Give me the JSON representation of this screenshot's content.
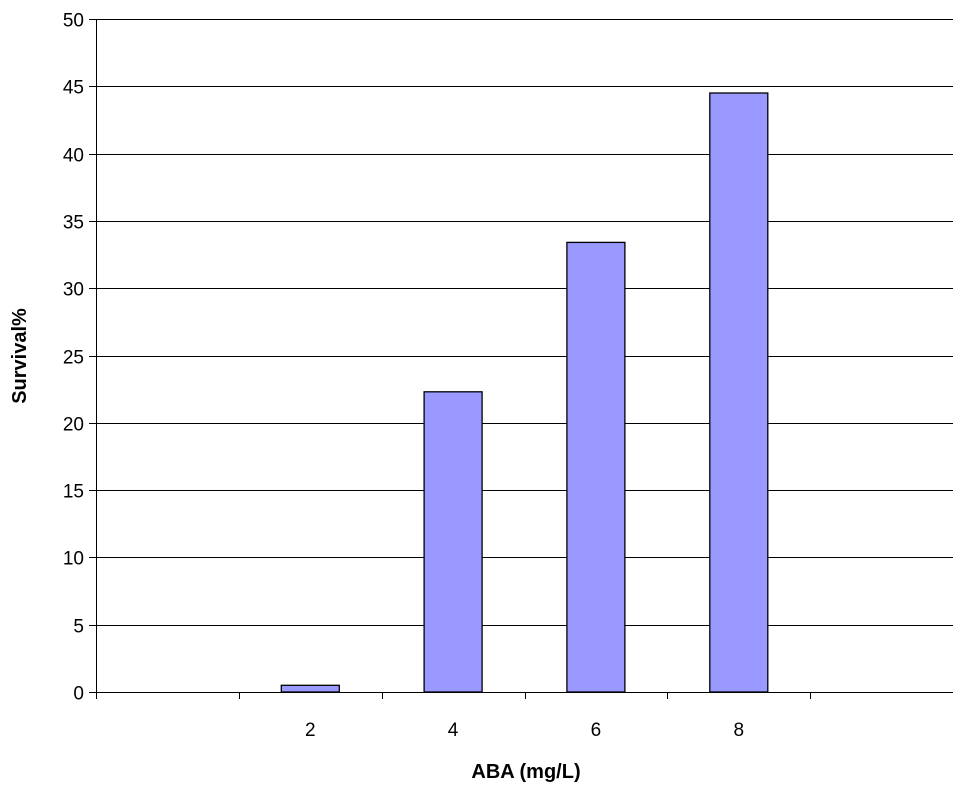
{
  "chart_data": {
    "type": "bar",
    "title": "",
    "xlabel": "ABA (mg/L)",
    "ylabel": "Survival%",
    "x_ticks": [
      "",
      "2",
      "4",
      "6",
      "8",
      ""
    ],
    "categories": [
      "2",
      "4",
      "6",
      "8"
    ],
    "values": [
      0.5,
      22.3,
      33.4,
      44.5
    ],
    "ylim": [
      0,
      50
    ],
    "yticks": [
      0,
      5,
      10,
      15,
      20,
      25,
      30,
      35,
      40,
      45,
      50
    ],
    "grid": true,
    "legend": "none",
    "colors": {
      "bar_fill": "#9999ff",
      "bar_stroke": "#000000",
      "gridline": "#000000",
      "axis": "#000000",
      "background": "#ffffff"
    }
  }
}
